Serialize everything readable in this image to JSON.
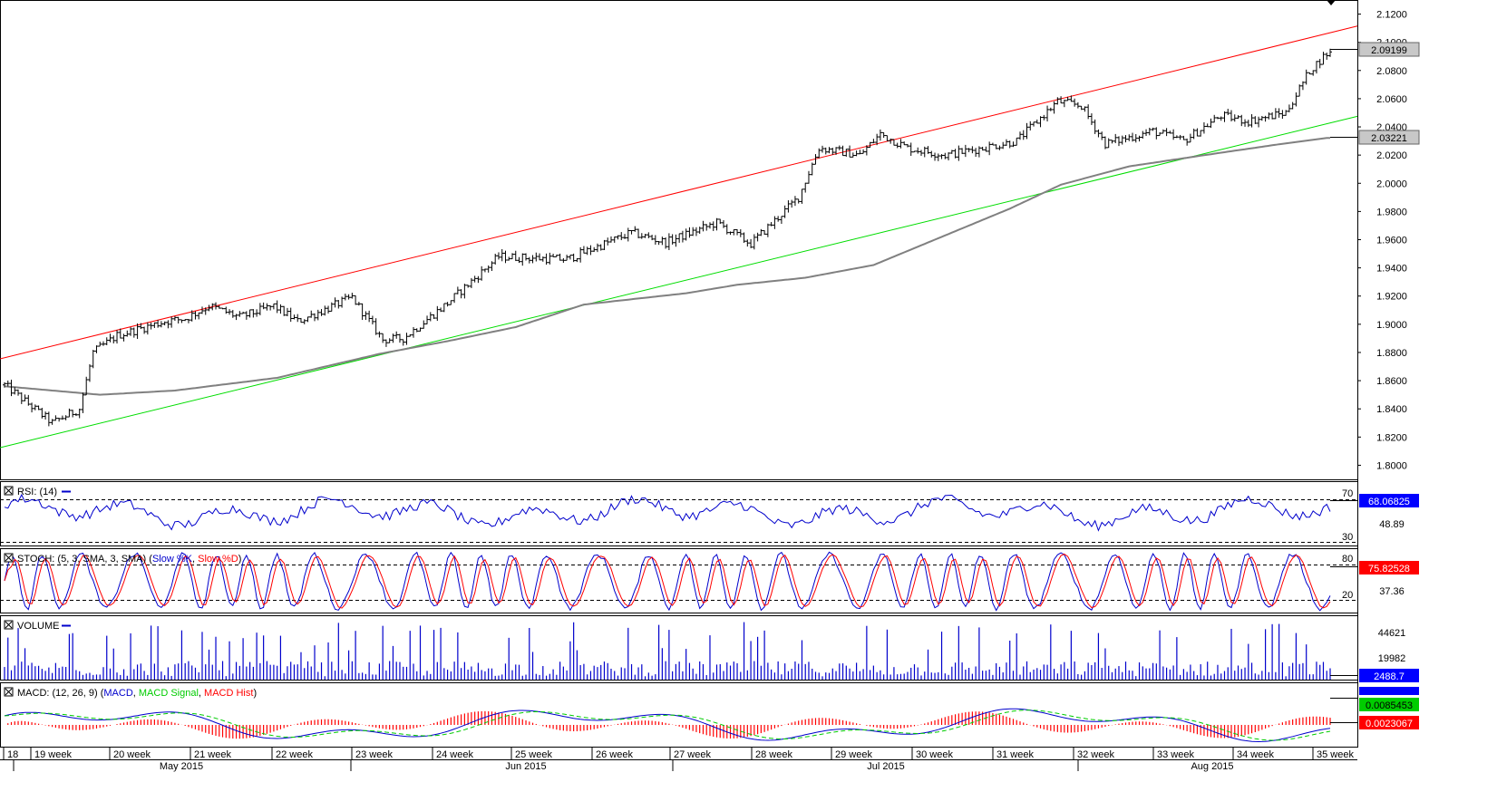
{
  "instrument": {
    "last_price": "2.09199",
    "sma_value": "2.03221"
  },
  "panels": {
    "rsi": {
      "title": "RSI: (14)",
      "value": "68.06825",
      "level_upper": "70",
      "level_lower": "30",
      "mid_label": "48.89",
      "color": "#0000cc"
    },
    "stoch": {
      "title": "STOCH: (5, 3, SMA, 3, SMA)",
      "slow_k": "Slow %K",
      "slow_d": "Slow %D",
      "value": "75.82528",
      "level_upper": "80",
      "level_lower": "20",
      "mid_label": "37.36",
      "k_color": "#0000cc",
      "d_color": "#ff0000"
    },
    "volume": {
      "title": "VOLUME",
      "value": "2488.7",
      "tick_upper": "44621",
      "tick_lower": "19982",
      "color": "#0000cc"
    },
    "macd": {
      "title": "MACD: (12, 26, 9)",
      "macd_label": "MACD",
      "signal_label": "MACD Signal",
      "hist_label": "MACD Hist",
      "macd_value": "0.0085453",
      "hist_value": "0.0023067",
      "macd_color": "#0000cc",
      "signal_color": "#00cc00",
      "hist_color": "#ff0000"
    }
  },
  "chart_data": {
    "type": "candlestick",
    "ylim": [
      1.79,
      2.13
    ],
    "y_ticks": [
      "2.1200",
      "2.1000",
      "2.0800",
      "2.0600",
      "2.0400",
      "2.0200",
      "2.0000",
      "1.9800",
      "1.9600",
      "1.9400",
      "1.9200",
      "1.9000",
      "1.8800",
      "1.8600",
      "1.8400",
      "1.8200",
      "1.8000"
    ],
    "x_week_labels": [
      "18",
      "19 week",
      "20 week",
      "21 week",
      "22 week",
      "23 week",
      "24 week",
      "25 week",
      "26 week",
      "27 week",
      "28 week",
      "29 week",
      "30 week",
      "31 week",
      "32 week",
      "33 week",
      "34 week",
      "35 week"
    ],
    "x_month_labels": [
      "May 2015",
      "Jun 2015",
      "Jul 2015",
      "Aug 2015"
    ],
    "close_anchors": [
      [
        0,
        1.857
      ],
      [
        14,
        1.83
      ],
      [
        22,
        1.84
      ],
      [
        26,
        1.88
      ],
      [
        33,
        1.892
      ],
      [
        47,
        1.902
      ],
      [
        53,
        1.904
      ],
      [
        60,
        1.913
      ],
      [
        69,
        1.905
      ],
      [
        79,
        1.913
      ],
      [
        86,
        1.902
      ],
      [
        102,
        1.919
      ],
      [
        111,
        1.889
      ],
      [
        117,
        1.89
      ],
      [
        130,
        1.915
      ],
      [
        145,
        1.948
      ],
      [
        165,
        1.946
      ],
      [
        184,
        1.965
      ],
      [
        194,
        1.958
      ],
      [
        209,
        1.972
      ],
      [
        219,
        1.957
      ],
      [
        233,
        1.99
      ],
      [
        239,
        2.025
      ],
      [
        251,
        2.02
      ],
      [
        257,
        2.035
      ],
      [
        265,
        2.025
      ],
      [
        276,
        2.02
      ],
      [
        287,
        2.025
      ],
      [
        297,
        2.03
      ],
      [
        309,
        2.058
      ],
      [
        316,
        2.055
      ],
      [
        323,
        2.028
      ],
      [
        337,
        2.037
      ],
      [
        346,
        2.03
      ],
      [
        357,
        2.048
      ],
      [
        365,
        2.044
      ],
      [
        376,
        2.05
      ],
      [
        383,
        2.08
      ],
      [
        388,
        2.092
      ]
    ],
    "sma_anchors": [
      [
        0,
        1.856
      ],
      [
        14,
        1.853
      ],
      [
        28,
        1.85
      ],
      [
        50,
        1.853
      ],
      [
        80,
        1.862
      ],
      [
        110,
        1.879
      ],
      [
        130,
        1.888
      ],
      [
        150,
        1.898
      ],
      [
        170,
        1.914
      ],
      [
        200,
        1.922
      ],
      [
        215,
        1.928
      ],
      [
        235,
        1.933
      ],
      [
        255,
        1.942
      ],
      [
        275,
        1.962
      ],
      [
        295,
        1.982
      ],
      [
        310,
        1.999
      ],
      [
        330,
        2.012
      ],
      [
        355,
        2.021
      ],
      [
        375,
        2.028
      ],
      [
        388,
        2.0322
      ]
    ],
    "channel_upper": [
      [
        0,
        1.8755
      ],
      [
        1497,
        2.1115
      ]
    ],
    "channel_lower": [
      [
        0,
        1.8125
      ],
      [
        1497,
        2.0475
      ]
    ],
    "volume_ylim": [
      0,
      58000
    ],
    "rsi_ylim": [
      18,
      82
    ],
    "stoch_ylim": [
      0,
      100
    ]
  }
}
